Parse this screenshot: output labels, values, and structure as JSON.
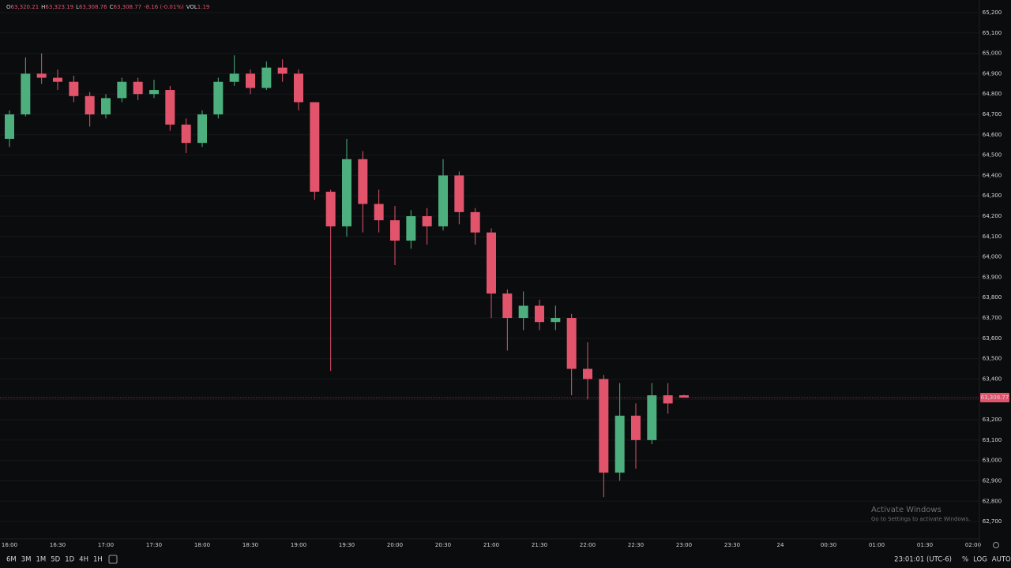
{
  "chart_data": {
    "type": "candlestick",
    "header": [
      "O",
      "63,320.21",
      "H",
      "63,323.19",
      "L",
      "63,308.76",
      "C",
      "63,308.77",
      "-8.16 (-0.01%)",
      "VOL",
      "1.19"
    ],
    "x": [
      "16:00",
      "16:10",
      "16:20",
      "16:30",
      "16:40",
      "16:50",
      "17:00",
      "17:10",
      "17:20",
      "17:30",
      "17:40",
      "17:50",
      "18:00",
      "18:10",
      "18:20",
      "18:30",
      "18:40",
      "18:50",
      "19:00",
      "19:10",
      "19:20",
      "19:30",
      "19:40",
      "19:50",
      "20:00",
      "20:10",
      "20:20",
      "20:30",
      "20:40",
      "20:50",
      "21:00",
      "21:10",
      "21:20",
      "21:30",
      "21:40",
      "21:50",
      "22:00",
      "22:10",
      "22:20",
      "22:30",
      "22:40",
      "22:50",
      "23:00"
    ],
    "open": [
      64580,
      64700,
      64900,
      64880,
      64860,
      64790,
      64700,
      64780,
      64860,
      64800,
      64820,
      64650,
      64560,
      64700,
      64860,
      64900,
      64830,
      64930,
      64900,
      64760,
      64320,
      64150,
      64480,
      64260,
      64180,
      64080,
      64200,
      64150,
      64400,
      64220,
      64120,
      63820,
      63700,
      63760,
      63680,
      63700,
      63450,
      63400,
      62940,
      63220,
      63100,
      63320,
      63320.21
    ],
    "high": [
      64720,
      64980,
      65000,
      64920,
      64890,
      64810,
      64800,
      64880,
      64880,
      64870,
      64840,
      64680,
      64720,
      64880,
      64990,
      64920,
      64960,
      64970,
      64920,
      64760,
      64330,
      64580,
      64520,
      64330,
      64250,
      64230,
      64240,
      64480,
      64420,
      64240,
      64140,
      63840,
      63830,
      63790,
      63760,
      63720,
      63580,
      63420,
      63380,
      63280,
      63380,
      63380,
      63323.19
    ],
    "low": [
      64540,
      64690,
      64850,
      64820,
      64760,
      64640,
      64680,
      64760,
      64770,
      64780,
      64620,
      64510,
      64540,
      64680,
      64840,
      64800,
      64820,
      64860,
      64720,
      64280,
      63440,
      64100,
      64120,
      64120,
      63960,
      64040,
      64060,
      64130,
      64160,
      64060,
      63700,
      63540,
      63640,
      63640,
      63640,
      63320,
      63300,
      62820,
      62900,
      62960,
      63080,
      63230,
      63308.76
    ],
    "close": [
      64700,
      64900,
      64880,
      64860,
      64790,
      64700,
      64780,
      64860,
      64800,
      64820,
      64650,
      64560,
      64700,
      64860,
      64900,
      64830,
      64930,
      64900,
      64760,
      64320,
      64150,
      64480,
      64260,
      64180,
      64080,
      64200,
      64150,
      64400,
      64220,
      64120,
      63820,
      63700,
      63760,
      63680,
      63700,
      63450,
      63400,
      62940,
      63220,
      63100,
      63320,
      63280,
      63308.77
    ],
    "up_color": "#4caf7d",
    "down_color": "#e2546b",
    "last_price": 63308.77,
    "last_price_label": "63,308.77",
    "ylim": [
      62615,
      65262
    ],
    "yticks": [
      {
        "value": 62700,
        "label": "62,700"
      },
      {
        "value": 62800,
        "label": "62,800"
      },
      {
        "value": 62900,
        "label": "62,900"
      },
      {
        "value": 63000,
        "label": "63,000"
      },
      {
        "value": 63100,
        "label": "63,100"
      },
      {
        "value": 63200,
        "label": "63,200"
      },
      {
        "value": 63300,
        "label": "63,300"
      },
      {
        "value": 63400,
        "label": "63,400"
      },
      {
        "value": 63500,
        "label": "63,500"
      },
      {
        "value": 63600,
        "label": "63,600"
      },
      {
        "value": 63700,
        "label": "63,700"
      },
      {
        "value": 63800,
        "label": "63,800"
      },
      {
        "value": 63900,
        "label": "63,900"
      },
      {
        "value": 64000,
        "label": "64,000"
      },
      {
        "value": 64100,
        "label": "64,100"
      },
      {
        "value": 64200,
        "label": "64,200"
      },
      {
        "value": 64300,
        "label": "64,300"
      },
      {
        "value": 64400,
        "label": "64,400"
      },
      {
        "value": 64500,
        "label": "64,500"
      },
      {
        "value": 64600,
        "label": "64,600"
      },
      {
        "value": 64700,
        "label": "64,700"
      },
      {
        "value": 64800,
        "label": "64,800"
      },
      {
        "value": 64900,
        "label": "64,900"
      },
      {
        "value": 65000,
        "label": "65,000"
      },
      {
        "value": 65100,
        "label": "65,100"
      },
      {
        "value": 65200,
        "label": "65,200"
      }
    ],
    "xticks": [
      "16:00",
      "16:30",
      "17:00",
      "17:30",
      "18:00",
      "18:30",
      "19:00",
      "19:30",
      "20:00",
      "20:30",
      "21:00",
      "21:30",
      "22:00",
      "22:30",
      "23:00",
      "23:30",
      "24",
      "00:30",
      "01:00",
      "01:30",
      "02:00"
    ],
    "grid": true,
    "log_scale": false,
    "ranges": [
      "6M",
      "3M",
      "1M",
      "5D",
      "1D",
      "4H",
      "1H"
    ],
    "clock": "23:01:01 (UTC-6)",
    "scale_buttons": [
      "%",
      "LOG",
      "AUTO"
    ],
    "watermark": [
      "Activate Windows",
      "Go to Settings to activate Windows."
    ]
  }
}
